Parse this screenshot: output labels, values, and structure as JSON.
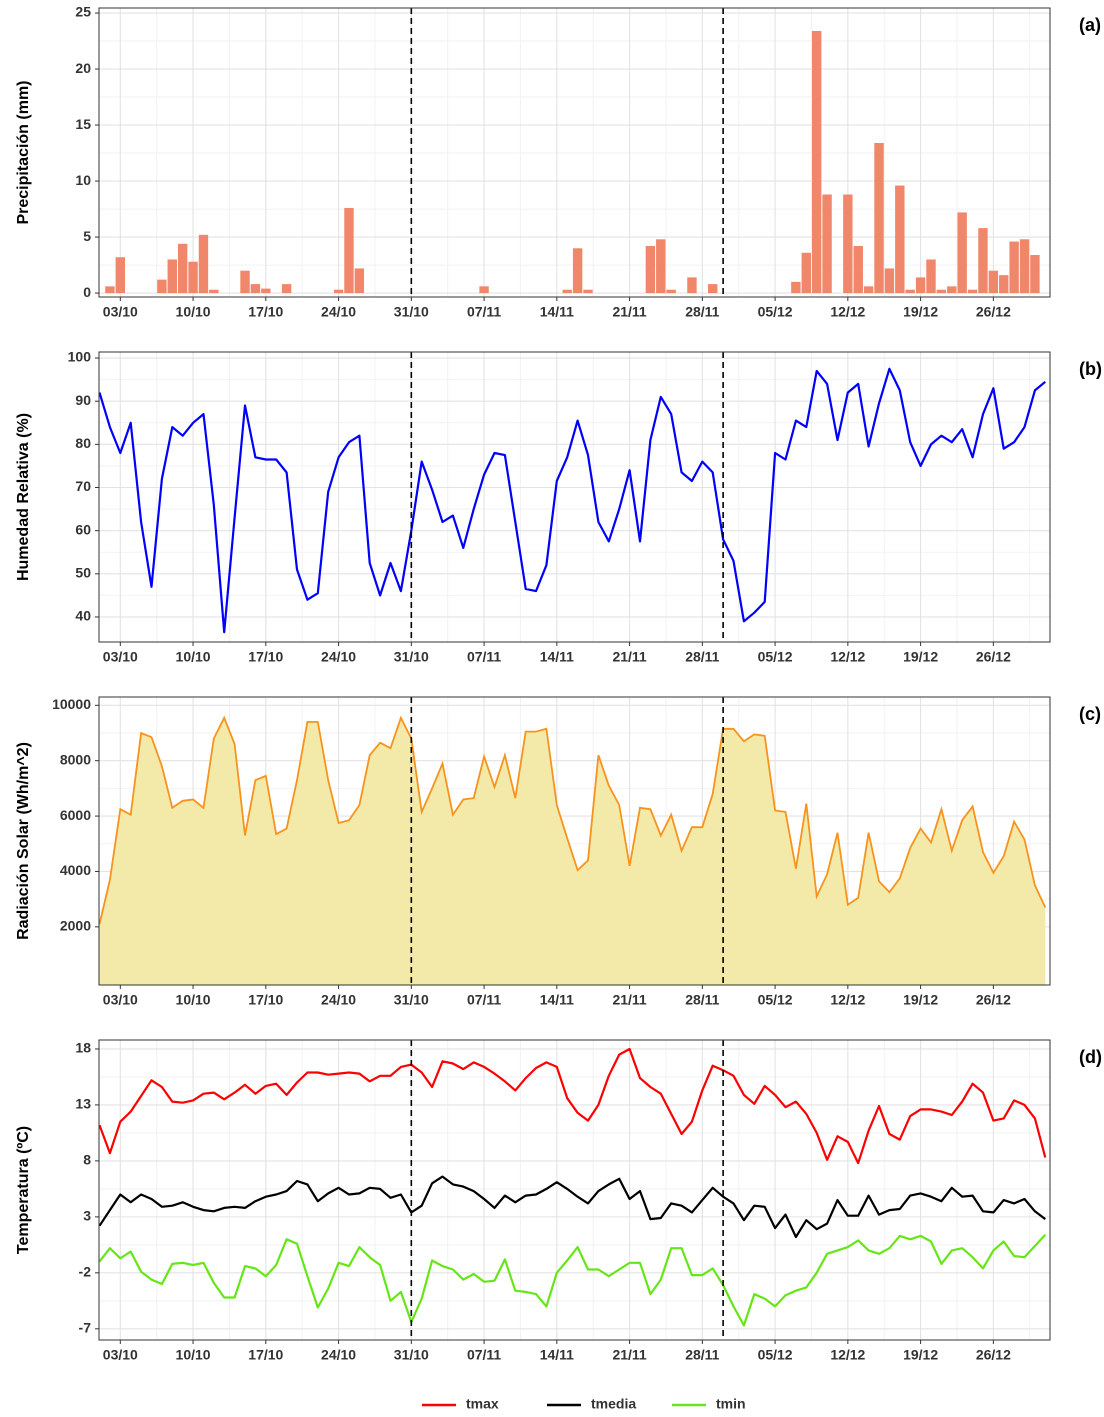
{
  "chart_data": [
    {
      "type": "bar",
      "panel_label": "(a)",
      "y_label": "Precipitación (mm)",
      "color": "#f0866a",
      "categories": [
        null,
        null,
        "03/10",
        null,
        null,
        null,
        null,
        null,
        null,
        "10/10",
        null,
        null,
        null,
        null,
        null,
        null,
        "17/10",
        null,
        null,
        null,
        null,
        null,
        null,
        "24/10",
        null,
        null,
        null,
        null,
        null,
        null,
        "31/10",
        null,
        null,
        null,
        null,
        null,
        null,
        "07/11",
        null,
        null,
        null,
        null,
        null,
        null,
        "14/11",
        null,
        null,
        null,
        null,
        null,
        null,
        "21/11",
        null,
        null,
        null,
        null,
        null,
        null,
        "28/11",
        null,
        null,
        null,
        null,
        null,
        null,
        "05/12",
        null,
        null,
        null,
        null,
        null,
        null,
        "12/12",
        null,
        null,
        null,
        null,
        null,
        null,
        "19/12",
        null,
        null,
        null,
        null,
        null,
        null,
        "26/12",
        null,
        null,
        null,
        null,
        null
      ],
      "values": [
        0,
        0.6,
        3.2,
        0,
        0,
        0,
        1.2,
        3.0,
        4.4,
        2.8,
        5.2,
        0.3,
        0,
        0,
        2.0,
        0.8,
        0.4,
        0,
        0.8,
        0,
        0,
        0,
        0,
        0.3,
        7.6,
        2.2,
        0,
        0,
        0,
        0,
        0,
        0,
        0,
        0,
        0,
        0,
        0,
        0.6,
        0,
        0,
        0,
        0,
        0,
        0,
        0,
        0.3,
        4.0,
        0.3,
        0,
        0,
        0,
        0,
        0,
        4.2,
        4.8,
        0.3,
        0,
        1.4,
        0,
        0.8,
        0,
        0,
        0,
        0,
        0,
        0,
        0,
        1.0,
        3.6,
        23.4,
        8.8,
        0,
        8.8,
        4.2,
        0.6,
        13.4,
        2.2,
        9.6,
        0.3,
        1.4,
        3.0,
        0.3,
        0.6,
        7.2,
        0.3,
        5.8,
        2.0,
        1.6,
        4.6,
        4.8,
        3.4,
        0
      ],
      "ylim": [
        -0.35,
        25.45
      ],
      "yticks": [
        0,
        5,
        10,
        15,
        20,
        25
      ],
      "grid": true,
      "vlines": [
        30,
        60
      ]
    },
    {
      "type": "line",
      "panel_label": "(b)",
      "y_label": "Humedad Relativa (%)",
      "color": "#0000ff",
      "categories": [
        null,
        null,
        "03/10",
        null,
        null,
        null,
        null,
        null,
        null,
        "10/10",
        null,
        null,
        null,
        null,
        null,
        null,
        "17/10",
        null,
        null,
        null,
        null,
        null,
        null,
        "24/10",
        null,
        null,
        null,
        null,
        null,
        null,
        "31/10",
        null,
        null,
        null,
        null,
        null,
        null,
        "07/11",
        null,
        null,
        null,
        null,
        null,
        null,
        "14/11",
        null,
        null,
        null,
        null,
        null,
        null,
        "21/11",
        null,
        null,
        null,
        null,
        null,
        null,
        "28/11",
        null,
        null,
        null,
        null,
        null,
        null,
        "05/12",
        null,
        null,
        null,
        null,
        null,
        null,
        "12/12",
        null,
        null,
        null,
        null,
        null,
        null,
        "19/12",
        null,
        null,
        null,
        null,
        null,
        null,
        "26/12",
        null,
        null,
        null,
        null,
        null
      ],
      "values": [
        92,
        84,
        78,
        85,
        62,
        47,
        72,
        84,
        82,
        85,
        87,
        66,
        36.5,
        63,
        89,
        77,
        76.5,
        76.5,
        73.5,
        51,
        44,
        45.5,
        69,
        77,
        80.5,
        82,
        52.5,
        45,
        52.5,
        46,
        60,
        76,
        69.5,
        62,
        63.5,
        56,
        65,
        73,
        78,
        77.5,
        62,
        46.5,
        46,
        52,
        71.5,
        77,
        85.5,
        77.5,
        62,
        57.5,
        65,
        74,
        57.5,
        81,
        91,
        87,
        73.5,
        71.5,
        76,
        73.5,
        58,
        53,
        39,
        41,
        43.5,
        78,
        76.5,
        85.5,
        84,
        97,
        94,
        81,
        92,
        94,
        79.5,
        89.5,
        97.5,
        92.5,
        80.5,
        75,
        80,
        82,
        80.5,
        83.5,
        77,
        87,
        93,
        79,
        80.5,
        84,
        92.5,
        94.5
      ],
      "ylim": [
        34.2,
        101.4
      ],
      "yticks": [
        40,
        50,
        60,
        70,
        80,
        90,
        100
      ],
      "grid": true,
      "vlines": [
        30,
        60
      ]
    },
    {
      "type": "area",
      "panel_label": "(c)",
      "y_label": "Radiación Solar (Wh/m^2)",
      "color": "#f7931e",
      "fill": "#f3e9a8",
      "categories": [
        null,
        null,
        "03/10",
        null,
        null,
        null,
        null,
        null,
        null,
        "10/10",
        null,
        null,
        null,
        null,
        null,
        null,
        "17/10",
        null,
        null,
        null,
        null,
        null,
        null,
        "24/10",
        null,
        null,
        null,
        null,
        null,
        null,
        "31/10",
        null,
        null,
        null,
        null,
        null,
        null,
        "07/11",
        null,
        null,
        null,
        null,
        null,
        null,
        "14/11",
        null,
        null,
        null,
        null,
        null,
        null,
        "21/11",
        null,
        null,
        null,
        null,
        null,
        null,
        "28/11",
        null,
        null,
        null,
        null,
        null,
        null,
        "05/12",
        null,
        null,
        null,
        null,
        null,
        null,
        "12/12",
        null,
        null,
        null,
        null,
        null,
        null,
        "19/12",
        null,
        null,
        null,
        null,
        null,
        null,
        "26/12",
        null,
        null,
        null,
        null,
        null
      ],
      "values": [
        2100,
        3700,
        6250,
        6050,
        9000,
        8850,
        7800,
        6300,
        6550,
        6600,
        6300,
        8800,
        9550,
        8600,
        5300,
        7300,
        7450,
        5350,
        5550,
        7300,
        9400,
        9400,
        7300,
        5750,
        5850,
        6400,
        8200,
        8650,
        8450,
        9550,
        8800,
        6150,
        7000,
        7900,
        6050,
        6600,
        6650,
        8150,
        7050,
        8200,
        6650,
        9050,
        9050,
        9150,
        6400,
        5200,
        4050,
        4400,
        8200,
        7100,
        6400,
        4200,
        6300,
        6250,
        5300,
        6050,
        4750,
        5600,
        5600,
        6800,
        9150,
        9150,
        8700,
        8950,
        8900,
        6200,
        6150,
        4100,
        6450,
        3100,
        3900,
        5400,
        2800,
        3050,
        5400,
        3650,
        3250,
        3750,
        4850,
        5550,
        5050,
        6250,
        4750,
        5850,
        6350,
        4700,
        3950,
        4550,
        5800,
        5150,
        3500,
        2700
      ],
      "ylim": [
        -100,
        10300
      ],
      "yticks": [
        2000,
        4000,
        6000,
        8000,
        10000
      ],
      "grid": true,
      "vlines": [
        30,
        60
      ]
    },
    {
      "type": "line",
      "panel_label": "(d)",
      "y_label": "Temperatura (ºC)",
      "legend": "bottom",
      "categories": [
        null,
        null,
        "03/10",
        null,
        null,
        null,
        null,
        null,
        null,
        "10/10",
        null,
        null,
        null,
        null,
        null,
        null,
        "17/10",
        null,
        null,
        null,
        null,
        null,
        null,
        "24/10",
        null,
        null,
        null,
        null,
        null,
        null,
        "31/10",
        null,
        null,
        null,
        null,
        null,
        null,
        "07/11",
        null,
        null,
        null,
        null,
        null,
        null,
        "14/11",
        null,
        null,
        null,
        null,
        null,
        null,
        "21/11",
        null,
        null,
        null,
        null,
        null,
        null,
        "28/11",
        null,
        null,
        null,
        null,
        null,
        null,
        "05/12",
        null,
        null,
        null,
        null,
        null,
        null,
        "12/12",
        null,
        null,
        null,
        null,
        null,
        null,
        "19/12",
        null,
        null,
        null,
        null,
        null,
        null,
        "26/12",
        null,
        null,
        null,
        null,
        null
      ],
      "series": [
        {
          "name": "tmax",
          "color": "#ff0000",
          "values": [
            11.2,
            8.7,
            11.5,
            12.4,
            13.8,
            15.2,
            14.6,
            13.3,
            13.2,
            13.4,
            14.0,
            14.1,
            13.5,
            14.1,
            14.8,
            14.0,
            14.7,
            14.9,
            13.9,
            15.0,
            15.9,
            15.9,
            15.7,
            15.8,
            15.9,
            15.8,
            15.1,
            15.6,
            15.6,
            16.4,
            16.6,
            15.9,
            14.6,
            16.9,
            16.7,
            16.2,
            16.8,
            16.4,
            15.8,
            15.1,
            14.3,
            15.4,
            16.3,
            16.8,
            16.4,
            13.6,
            12.3,
            11.6,
            13.0,
            15.6,
            17.5,
            18.0,
            15.4,
            14.6,
            14.0,
            12.2,
            10.4,
            11.5,
            14.3,
            16.5,
            16.1,
            15.6,
            13.9,
            13.1,
            14.7,
            13.9,
            12.8,
            13.3,
            12.2,
            10.5,
            8.1,
            10.2,
            9.7,
            7.8,
            10.7,
            12.9,
            10.4,
            9.9,
            12.0,
            12.6,
            12.6,
            12.4,
            12.1,
            13.3,
            14.9,
            14.1,
            11.6,
            11.8,
            13.4,
            13.0,
            11.8,
            8.3
          ]
        },
        {
          "name": "tmedia",
          "color": "#000000",
          "values": [
            2.2,
            3.6,
            5.0,
            4.3,
            5.0,
            4.6,
            3.9,
            4.0,
            4.3,
            3.9,
            3.6,
            3.5,
            3.8,
            3.9,
            3.8,
            4.4,
            4.8,
            5.0,
            5.3,
            6.2,
            5.9,
            4.4,
            5.1,
            5.6,
            5.0,
            5.1,
            5.6,
            5.5,
            4.7,
            5.0,
            3.4,
            4.0,
            6.0,
            6.6,
            5.9,
            5.7,
            5.3,
            4.6,
            3.8,
            4.9,
            4.3,
            4.9,
            5.0,
            5.5,
            6.1,
            5.5,
            4.8,
            4.2,
            5.3,
            5.9,
            6.4,
            4.6,
            5.3,
            2.8,
            2.9,
            4.2,
            4.0,
            3.4,
            4.5,
            5.6,
            4.8,
            4.2,
            2.7,
            4.0,
            3.9,
            2.0,
            3.2,
            1.2,
            2.7,
            1.9,
            2.4,
            4.5,
            3.1,
            3.1,
            4.9,
            3.2,
            3.6,
            3.7,
            4.9,
            5.1,
            4.8,
            4.4,
            5.6,
            4.8,
            4.9,
            3.5,
            3.4,
            4.5,
            4.2,
            4.6,
            3.5,
            2.8
          ]
        },
        {
          "name": "tmin",
          "color": "#66e619",
          "values": [
            -1.0,
            0.2,
            -0.7,
            -0.1,
            -1.9,
            -2.6,
            -3.0,
            -1.2,
            -1.1,
            -1.3,
            -1.1,
            -2.9,
            -4.2,
            -4.2,
            -1.4,
            -1.6,
            -2.3,
            -1.3,
            1.0,
            0.6,
            -2.3,
            -5.1,
            -3.4,
            -1.1,
            -1.4,
            0.3,
            -0.6,
            -1.3,
            -4.5,
            -3.7,
            -6.4,
            -4.3,
            -0.9,
            -1.4,
            -1.7,
            -2.6,
            -2.1,
            -2.8,
            -2.7,
            -0.8,
            -3.6,
            -3.7,
            -3.9,
            -5.0,
            -2.0,
            -0.9,
            0.3,
            -1.7,
            -1.7,
            -2.3,
            -1.7,
            -1.1,
            -1.1,
            -3.9,
            -2.6,
            0.2,
            0.2,
            -2.2,
            -2.2,
            -1.6,
            -3.1,
            -5.0,
            -6.7,
            -3.9,
            -4.3,
            -5.0,
            -4.0,
            -3.6,
            -3.3,
            -2.0,
            -0.3,
            0.0,
            0.3,
            0.9,
            0.0,
            -0.3,
            0.2,
            1.3,
            1.0,
            1.3,
            0.8,
            -1.2,
            0.0,
            0.2,
            -0.6,
            -1.6,
            0.0,
            0.8,
            -0.5,
            -0.6,
            0.4,
            1.4
          ]
        }
      ],
      "ylim": [
        -8.0,
        18.8
      ],
      "yticks": [
        18,
        13,
        8,
        3,
        -2,
        -7
      ],
      "grid": true,
      "vlines": [
        30,
        60
      ]
    }
  ]
}
